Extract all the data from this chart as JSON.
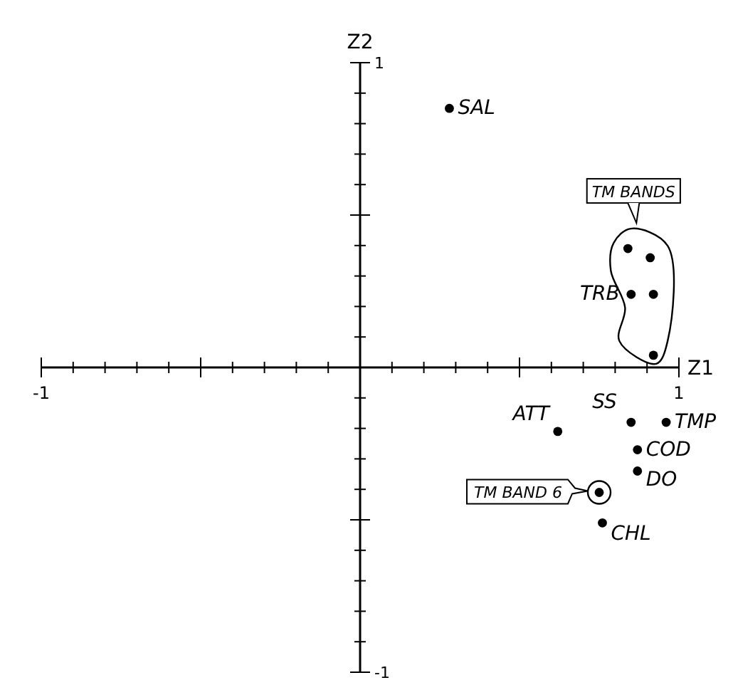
{
  "chart_data": {
    "type": "scatter",
    "xlabel": "Z1",
    "ylabel": "Z2",
    "xlim": [
      -1,
      1
    ],
    "ylim": [
      -1,
      1
    ],
    "xticks": [
      -1,
      {
        "value": -0.9,
        "label": null
      },
      {
        "value": -0.8,
        "label": null
      },
      {
        "value": -0.7,
        "label": null
      },
      {
        "value": -0.6,
        "label": null
      },
      {
        "value": -0.5,
        "label": null
      },
      {
        "value": -0.4,
        "label": null
      },
      {
        "value": -0.3,
        "label": null
      },
      {
        "value": -0.2,
        "label": null
      },
      {
        "value": -0.1,
        "label": null
      },
      {
        "value": 0.1,
        "label": null
      },
      {
        "value": 0.2,
        "label": null
      },
      {
        "value": 0.3,
        "label": null
      },
      {
        "value": 0.4,
        "label": null
      },
      {
        "value": 0.5,
        "label": null
      },
      {
        "value": 0.6,
        "label": null
      },
      {
        "value": 0.7,
        "label": null
      },
      {
        "value": 0.8,
        "label": null
      },
      {
        "value": 0.9,
        "label": null
      },
      1
    ],
    "yticks": [
      -1,
      {
        "value": -0.9,
        "label": null
      },
      {
        "value": -0.8,
        "label": null
      },
      {
        "value": -0.7,
        "label": null
      },
      {
        "value": -0.6,
        "label": null
      },
      {
        "value": -0.5,
        "label": null
      },
      {
        "value": -0.4,
        "label": null
      },
      {
        "value": -0.3,
        "label": null
      },
      {
        "value": -0.2,
        "label": null
      },
      {
        "value": -0.1,
        "label": null
      },
      {
        "value": 0.1,
        "label": null
      },
      {
        "value": 0.2,
        "label": null
      },
      {
        "value": 0.3,
        "label": null
      },
      {
        "value": 0.4,
        "label": null
      },
      {
        "value": 0.5,
        "label": null
      },
      {
        "value": 0.6,
        "label": null
      },
      {
        "value": 0.7,
        "label": null
      },
      {
        "value": 0.8,
        "label": null
      },
      {
        "value": 0.9,
        "label": null
      },
      1
    ],
    "marker": "circle",
    "grid": false,
    "legend": false,
    "series": [
      {
        "color": "#000000",
        "x": [
          0.28,
          0.85,
          0.62,
          0.85,
          0.96,
          0.87,
          0.87,
          0.76,
          0.75,
          0.84,
          0.91,
          0.92,
          0.92
        ],
        "values": [
          0.85,
          0.24,
          -0.21,
          -0.18,
          -0.18,
          -0.27,
          -0.34,
          -0.51,
          -0.41,
          0.39,
          0.36,
          0.24,
          0.04
        ]
      }
    ],
    "annotations": [
      {
        "text": "SAL",
        "x": 0.28,
        "y": 0.85
      },
      {
        "text": "TRB",
        "x": 0.85,
        "y": 0.24
      },
      {
        "text": "ATT",
        "x": 0.62,
        "y": -0.21
      },
      {
        "text": "SS",
        "x": 0.85,
        "y": -0.18
      },
      {
        "text": "TMP",
        "x": 0.96,
        "y": -0.18
      },
      {
        "text": "COD",
        "x": 0.87,
        "y": -0.27
      },
      {
        "text": "DO",
        "x": 0.87,
        "y": -0.34
      },
      {
        "text": "CHL",
        "x": 0.76,
        "y": -0.51
      },
      {
        "text": "TM BAND 6",
        "x": 0.75,
        "y": -0.41
      },
      "TM BANDS"
    ]
  }
}
